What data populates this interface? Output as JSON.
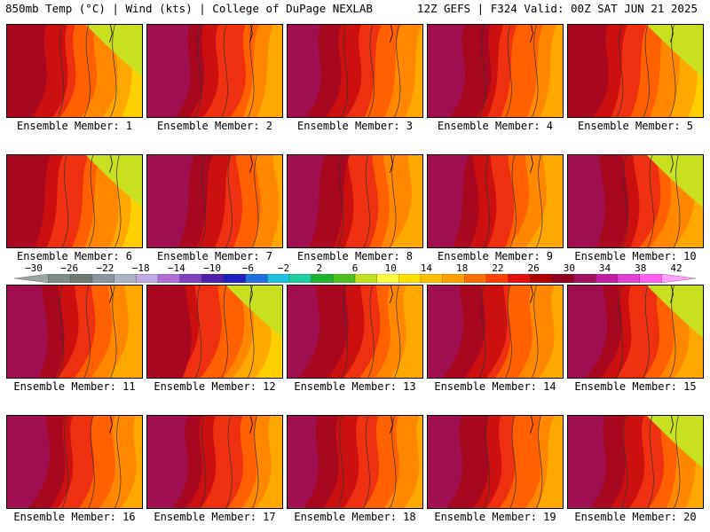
{
  "header": {
    "left": "850mb Temp (°C) | Wind (kts) | College of DuPage NEXLAB",
    "right": "12Z GEFS | F324 Valid: 00Z SAT JUN 21 2025"
  },
  "members": [
    {
      "label": "Ensemble Member: 1",
      "warmth": 0.55,
      "hot_west": true
    },
    {
      "label": "Ensemble Member: 2",
      "warmth": 0.7,
      "hot_west": true
    },
    {
      "label": "Ensemble Member: 3",
      "warmth": 0.72,
      "hot_west": true
    },
    {
      "label": "Ensemble Member: 4",
      "warmth": 0.68,
      "hot_west": true
    },
    {
      "label": "Ensemble Member: 5",
      "warmth": 0.55,
      "hot_west": true
    },
    {
      "label": "Ensemble Member: 6",
      "warmth": 0.5,
      "hot_west": true
    },
    {
      "label": "Ensemble Member: 7",
      "warmth": 0.66,
      "hot_west": true
    },
    {
      "label": "Ensemble Member: 8",
      "warmth": 0.7,
      "hot_west": true
    },
    {
      "label": "Ensemble Member: 9",
      "warmth": 0.66,
      "hot_west": true
    },
    {
      "label": "Ensemble Member: 10",
      "warmth": 0.68,
      "hot_west": true
    },
    {
      "label": "Ensemble Member: 11",
      "warmth": 0.6,
      "hot_west": true
    },
    {
      "label": "Ensemble Member: 12",
      "warmth": 0.58,
      "hot_west": true
    },
    {
      "label": "Ensemble Member: 13",
      "warmth": 0.72,
      "hot_west": true
    },
    {
      "label": "Ensemble Member: 14",
      "warmth": 0.66,
      "hot_west": true
    },
    {
      "label": "Ensemble Member: 15",
      "warmth": 0.62,
      "hot_west": true
    },
    {
      "label": "Ensemble Member: 16",
      "warmth": 0.7,
      "hot_west": true
    },
    {
      "label": "Ensemble Member: 17",
      "warmth": 0.7,
      "hot_west": true
    },
    {
      "label": "Ensemble Member: 18",
      "warmth": 0.6,
      "hot_west": true
    },
    {
      "label": "Ensemble Member: 19",
      "warmth": 0.62,
      "hot_west": true
    },
    {
      "label": "Ensemble Member: 20",
      "warmth": 0.64,
      "hot_west": true
    }
  ],
  "colorbar": {
    "labels": [
      "-30",
      "-26",
      "-22",
      "-18",
      "-14",
      "-10",
      "-6",
      "-2",
      "2",
      "6",
      "10",
      "14",
      "18",
      "22",
      "26",
      "30",
      "34",
      "38",
      "42"
    ],
    "colors": [
      "#9aa8a0",
      "#7e8c84",
      "#6c7870",
      "#8a96a0",
      "#aab4c4",
      "#c0a8e0",
      "#b070d8",
      "#8040c0",
      "#5020a8",
      "#2020c0",
      "#2070e0",
      "#20c0e0",
      "#20d0a0",
      "#20b030",
      "#50c020",
      "#c0e020",
      "#ffff40",
      "#ffe000",
      "#ffc000",
      "#ffa000",
      "#ff7000",
      "#ff4000",
      "#e01010",
      "#b00000",
      "#900020",
      "#a01060",
      "#c020a0",
      "#e040d0",
      "#ff60f0",
      "#ffa0ff"
    ]
  }
}
